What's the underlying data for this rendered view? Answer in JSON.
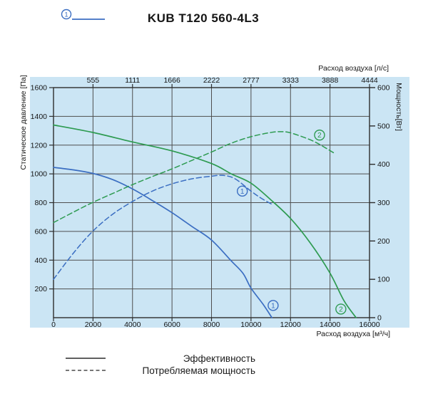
{
  "header": {
    "marker": "1",
    "title": "KUB T120 560-4L3"
  },
  "colors": {
    "blue": "#3b6ec2",
    "green": "#2e9b51",
    "panel": "#cbe5f4",
    "grid": "#4e4e4e",
    "border": "#2d2d2d",
    "text": "#161616",
    "legend_line": "#4a4a4a"
  },
  "chart_data": {
    "type": "line",
    "title": "KUB T120 560-4L3",
    "grid": "on",
    "x_bottom": {
      "label": "Расход воздуха [м³/ч]",
      "range": [
        0,
        16000
      ],
      "ticks": [
        0,
        2000,
        4000,
        6000,
        8000,
        10000,
        12000,
        14000,
        16000
      ]
    },
    "x_top": {
      "label": "Расход воздуха [л/с]",
      "ticks": [
        {
          "label": "555",
          "at": 2000
        },
        {
          "label": "1111",
          "at": 4000
        },
        {
          "label": "1666",
          "at": 6000
        },
        {
          "label": "2222",
          "at": 8000
        },
        {
          "label": "2777",
          "at": 10000
        },
        {
          "label": "3333",
          "at": 12000
        },
        {
          "label": "3888",
          "at": 14000
        },
        {
          "label": "4444",
          "at": 16000
        }
      ]
    },
    "y_left": {
      "label": "Статическое давление [Па]",
      "range": [
        0,
        1600
      ],
      "ticks": [
        0,
        200,
        400,
        600,
        800,
        1000,
        1200,
        1400,
        1600
      ]
    },
    "y_right": {
      "label": "Мощность[Вт]",
      "range": [
        0,
        600
      ],
      "ticks": [
        0,
        100,
        200,
        300,
        400,
        500,
        600
      ]
    },
    "series": [
      {
        "id": "pressure-1",
        "name": "Эффективность ①",
        "axis": "left",
        "style": "solid",
        "color": "blue",
        "points": [
          [
            0,
            1045
          ],
          [
            1000,
            1028
          ],
          [
            2000,
            1003
          ],
          [
            3000,
            960
          ],
          [
            4000,
            895
          ],
          [
            5000,
            815
          ],
          [
            6000,
            730
          ],
          [
            7000,
            635
          ],
          [
            8000,
            540
          ],
          [
            9000,
            395
          ],
          [
            9600,
            307
          ],
          [
            10000,
            205
          ],
          [
            10600,
            95
          ],
          [
            11060,
            0
          ]
        ]
      },
      {
        "id": "pressure-2",
        "name": "Эффективность ②",
        "axis": "left",
        "style": "solid",
        "color": "green",
        "points": [
          [
            0,
            1340
          ],
          [
            2000,
            1288
          ],
          [
            4000,
            1222
          ],
          [
            6000,
            1160
          ],
          [
            8000,
            1072
          ],
          [
            9000,
            1000
          ],
          [
            10000,
            935
          ],
          [
            11000,
            820
          ],
          [
            12000,
            690
          ],
          [
            13000,
            520
          ],
          [
            14000,
            310
          ],
          [
            14700,
            120
          ],
          [
            15320,
            0
          ]
        ]
      },
      {
        "id": "power-1",
        "name": "Потребляемая мощность ①",
        "axis": "right",
        "style": "dashed",
        "color": "blue",
        "points": [
          [
            0,
            100
          ],
          [
            1000,
            168
          ],
          [
            2000,
            226
          ],
          [
            3000,
            270
          ],
          [
            4000,
            303
          ],
          [
            5000,
            330
          ],
          [
            6000,
            349
          ],
          [
            7000,
            362
          ],
          [
            8000,
            369
          ],
          [
            8600,
            371
          ],
          [
            9200,
            362
          ],
          [
            10000,
            330
          ],
          [
            10500,
            312
          ],
          [
            11080,
            295
          ]
        ]
      },
      {
        "id": "power-2",
        "name": "Потребляемая мощность ②",
        "axis": "right",
        "style": "dashed",
        "color": "green",
        "points": [
          [
            0,
            248
          ],
          [
            1000,
            275
          ],
          [
            2000,
            301
          ],
          [
            3000,
            324
          ],
          [
            4000,
            347
          ],
          [
            5000,
            368
          ],
          [
            6000,
            388
          ],
          [
            7000,
            410
          ],
          [
            8000,
            432
          ],
          [
            9000,
            455
          ],
          [
            10000,
            472
          ],
          [
            11000,
            483
          ],
          [
            11500,
            485
          ],
          [
            12000,
            482
          ],
          [
            13000,
            464
          ],
          [
            13600,
            448
          ],
          [
            14250,
            428
          ]
        ]
      }
    ],
    "markers": [
      {
        "label": "1",
        "color": "blue",
        "x": 9560,
        "y": 880
      },
      {
        "label": "1",
        "color": "blue",
        "x": 11120,
        "y": 85
      },
      {
        "label": "2",
        "color": "green",
        "x": 13470,
        "y": 1270
      },
      {
        "label": "2",
        "color": "green",
        "x": 14550,
        "y": 60
      }
    ],
    "legend": [
      {
        "style": "solid",
        "label": "Эффективность"
      },
      {
        "style": "dashed",
        "label": "Потребляемая мощность"
      }
    ]
  }
}
